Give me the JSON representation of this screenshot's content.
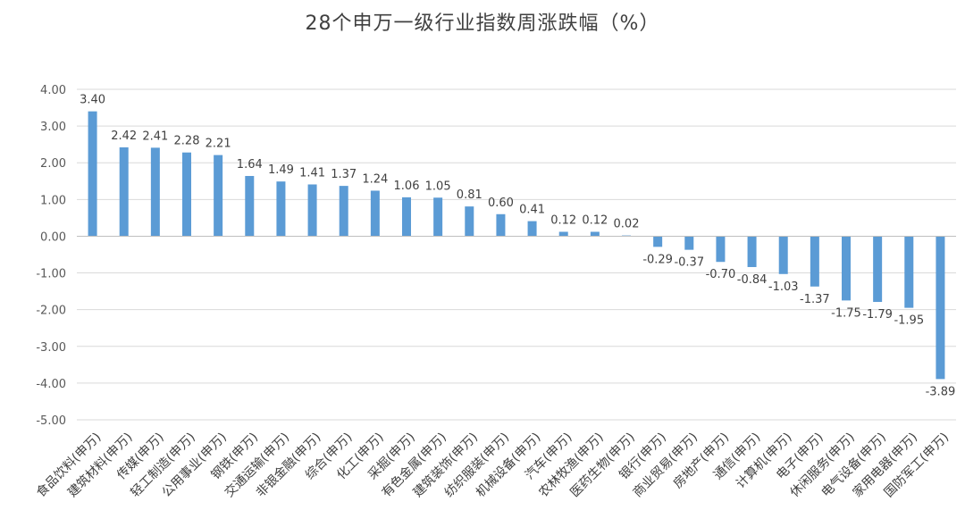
{
  "chart_data": {
    "type": "bar",
    "title": "28个申万一级行业指数周涨跌幅（%）",
    "xlabel": "",
    "ylabel": "",
    "ylim": [
      -5,
      4
    ],
    "yticks": [
      4,
      3,
      2,
      1,
      0,
      -1,
      -2,
      -3,
      -4,
      -5
    ],
    "ytick_labels": [
      "4.00",
      "3.00",
      "2.00",
      "1.00",
      "0.00",
      "-1.00",
      "-2.00",
      "-3.00",
      "-4.00",
      "-5.00"
    ],
    "grid": true,
    "legend": "none",
    "bar_color": "#5B9BD5",
    "categories": [
      "食品饮料(申万)",
      "建筑材料(申万)",
      "传媒(申万)",
      "轻工制造(申万)",
      "公用事业(申万)",
      "钢铁(申万)",
      "交通运输(申万)",
      "非银金融(申万)",
      "综合(申万)",
      "化工(申万)",
      "采掘(申万)",
      "有色金属(申万)",
      "建筑装饰(申万)",
      "纺织服装(申万)",
      "机械设备(申万)",
      "汽车(申万)",
      "农林牧渔(申万)",
      "医药生物(申万)",
      "银行(申万)",
      "商业贸易(申万)",
      "房地产(申万)",
      "通信(申万)",
      "计算机(申万)",
      "电子(申万)",
      "休闲服务(申万)",
      "电气设备(申万)",
      "家用电器(申万)",
      "国防军工(申万)"
    ],
    "values": [
      3.4,
      2.42,
      2.41,
      2.28,
      2.21,
      1.64,
      1.49,
      1.41,
      1.37,
      1.24,
      1.06,
      1.05,
      0.81,
      0.6,
      0.41,
      0.12,
      0.12,
      0.02,
      -0.29,
      -0.37,
      -0.7,
      -0.84,
      -1.03,
      -1.37,
      -1.75,
      -1.79,
      -1.95,
      -3.89
    ],
    "value_labels": [
      "3.40",
      "2.42",
      "2.41",
      "2.28",
      "2.21",
      "1.64",
      "1.49",
      "1.41",
      "1.37",
      "1.24",
      "1.06",
      "1.05",
      "0.81",
      "0.60",
      "0.41",
      "0.12",
      "0.12",
      "0.02",
      "-0.29",
      "-0.37",
      "-0.70",
      "-0.84",
      "-1.03",
      "-1.37",
      "-1.75",
      "-1.79",
      "-1.95",
      "-3.89"
    ]
  }
}
